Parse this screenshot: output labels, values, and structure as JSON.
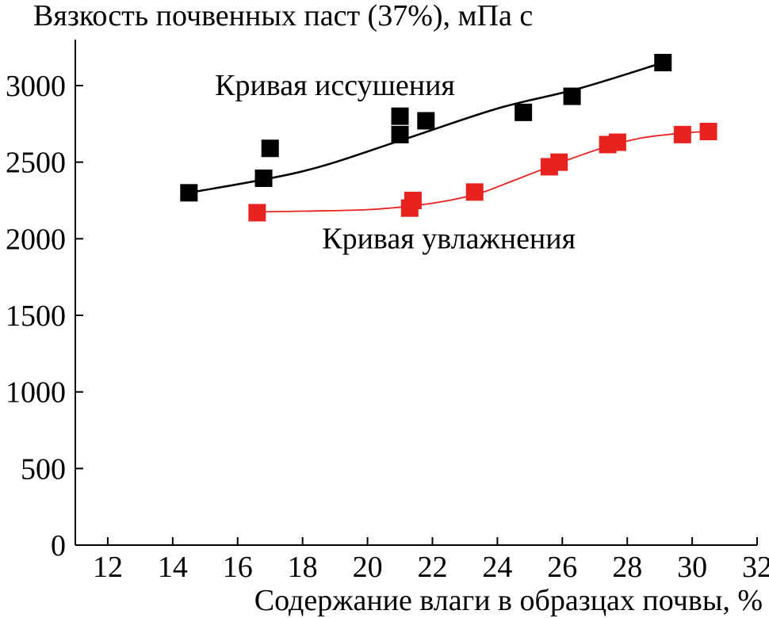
{
  "chart_data": {
    "type": "scatter",
    "ylabel": "Вязкость почвенных паст (37%), мПа с",
    "xlabel": "Содержание влаги в образцах почвы, %",
    "xlim": [
      11,
      32
    ],
    "ylim": [
      0,
      3300
    ],
    "x_ticks": [
      12,
      14,
      16,
      18,
      20,
      22,
      24,
      26,
      28,
      30,
      32
    ],
    "y_ticks": [
      0,
      500,
      1000,
      1500,
      2000,
      2500,
      3000
    ],
    "grid": false,
    "series": [
      {
        "name": "Кривая иссушения",
        "color": "#000000",
        "marker": "square",
        "points": [
          [
            14.5,
            2300
          ],
          [
            16.8,
            2395
          ],
          [
            17.0,
            2590
          ],
          [
            21.0,
            2680
          ],
          [
            21.0,
            2800
          ],
          [
            21.8,
            2770
          ],
          [
            24.8,
            2825
          ],
          [
            26.3,
            2930
          ],
          [
            29.1,
            3150
          ]
        ],
        "fit": [
          [
            14.5,
            2300
          ],
          [
            18.0,
            2440
          ],
          [
            21.0,
            2640
          ],
          [
            24.0,
            2850
          ],
          [
            26.5,
            2980
          ],
          [
            29.1,
            3150
          ]
        ]
      },
      {
        "name": "Кривая увлажнения",
        "color": "#e8221e",
        "marker": "square",
        "points": [
          [
            16.6,
            2170
          ],
          [
            21.3,
            2200
          ],
          [
            21.4,
            2250
          ],
          [
            23.3,
            2305
          ],
          [
            25.6,
            2470
          ],
          [
            25.9,
            2500
          ],
          [
            27.4,
            2615
          ],
          [
            27.7,
            2630
          ],
          [
            29.7,
            2680
          ],
          [
            30.5,
            2700
          ]
        ],
        "fit": [
          [
            16.6,
            2175
          ],
          [
            18.0,
            2180
          ],
          [
            20.0,
            2190
          ],
          [
            21.4,
            2215
          ],
          [
            22.5,
            2250
          ],
          [
            23.5,
            2300
          ],
          [
            24.5,
            2380
          ],
          [
            25.6,
            2470
          ],
          [
            26.5,
            2540
          ],
          [
            27.5,
            2610
          ],
          [
            28.5,
            2660
          ],
          [
            29.7,
            2690
          ],
          [
            30.5,
            2700
          ]
        ]
      }
    ],
    "annotations": [
      {
        "text": "Кривая иссушения",
        "x": 15.3,
        "y": 3000
      },
      {
        "text": "Кривая увлажнения",
        "x": 18.6,
        "y": 2000
      }
    ]
  }
}
